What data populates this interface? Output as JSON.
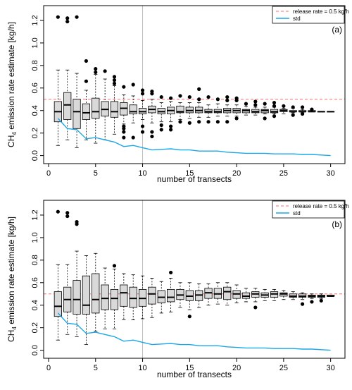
{
  "chart_data": [
    {
      "type": "box",
      "panel_label": "(a)",
      "xlabel": "number of transects",
      "ylabel": "CH4 emission rate estimate [kg/h]",
      "xlim": [
        0,
        31
      ],
      "ylim": [
        -0.04,
        1.3
      ],
      "xticks": [
        0,
        5,
        10,
        15,
        20,
        25,
        30
      ],
      "yticks": [
        0.0,
        0.2,
        0.4,
        0.6,
        0.8,
        1.0,
        1.2
      ],
      "reference_line": {
        "name": "release rate = 0.5 kg/h",
        "value": 0.5,
        "color": "#ff6b6b",
        "style": "dashed"
      },
      "vertical_line": {
        "x": 10,
        "color": "#bbbbbb"
      },
      "legend_position": "top-right",
      "grid": false,
      "boxes": [
        {
          "x": 1,
          "whisker_low": 0.09,
          "q1": 0.3,
          "median": 0.39,
          "q3": 0.48,
          "whisker_high": 0.76,
          "outliers": [
            1.23
          ]
        },
        {
          "x": 2,
          "whisker_low": 0.14,
          "q1": 0.32,
          "median": 0.45,
          "q3": 0.56,
          "whisker_high": 0.76,
          "outliers": [
            1.19,
            1.22
          ]
        },
        {
          "x": 3,
          "whisker_low": 0.07,
          "q1": 0.24,
          "median": 0.39,
          "q3": 0.5,
          "whisker_high": 0.73,
          "outliers": [
            1.23
          ]
        },
        {
          "x": 4,
          "whisker_low": 0.14,
          "q1": 0.32,
          "median": 0.38,
          "q3": 0.46,
          "whisker_high": 0.58,
          "outliers": [
            0.66,
            0.84
          ]
        },
        {
          "x": 5,
          "whisker_low": 0.11,
          "q1": 0.33,
          "median": 0.39,
          "q3": 0.51,
          "whisker_high": 0.72,
          "outliers": [
            0.77,
            0.74
          ]
        },
        {
          "x": 6,
          "whisker_low": 0.14,
          "q1": 0.35,
          "median": 0.41,
          "q3": 0.48,
          "whisker_high": 0.68,
          "outliers": [
            0.75
          ]
        },
        {
          "x": 7,
          "whisker_low": 0.19,
          "q1": 0.34,
          "median": 0.39,
          "q3": 0.48,
          "whisker_high": 0.62,
          "outliers": [
            0.64,
            0.67,
            0.7
          ]
        },
        {
          "x": 8,
          "whisker_low": 0.28,
          "q1": 0.36,
          "median": 0.42,
          "q3": 0.47,
          "whisker_high": 0.54,
          "outliers": [
            0.16,
            0.21,
            0.24,
            0.26,
            0.61
          ]
        },
        {
          "x": 9,
          "whisker_low": 0.29,
          "q1": 0.37,
          "median": 0.39,
          "q3": 0.45,
          "whisker_high": 0.53,
          "outliers": [
            0.16,
            0.63
          ]
        },
        {
          "x": 10,
          "whisker_low": 0.32,
          "q1": 0.37,
          "median": 0.39,
          "q3": 0.42,
          "whisker_high": 0.49,
          "outliers": [
            0.21,
            0.26,
            0.55,
            0.58
          ]
        },
        {
          "x": 11,
          "whisker_low": 0.29,
          "q1": 0.38,
          "median": 0.41,
          "q3": 0.44,
          "whisker_high": 0.5,
          "outliers": [
            0.17,
            0.21,
            0.55,
            0.57
          ]
        },
        {
          "x": 12,
          "whisker_low": 0.3,
          "q1": 0.37,
          "median": 0.39,
          "q3": 0.42,
          "whisker_high": 0.47,
          "outliers": [
            0.23,
            0.27,
            0.52
          ]
        },
        {
          "x": 13,
          "whisker_low": 0.3,
          "q1": 0.37,
          "median": 0.4,
          "q3": 0.43,
          "whisker_high": 0.48,
          "outliers": [
            0.23,
            0.26,
            0.51
          ]
        },
        {
          "x": 14,
          "whisker_low": 0.32,
          "q1": 0.38,
          "median": 0.39,
          "q3": 0.44,
          "whisker_high": 0.47,
          "outliers": [
            0.3,
            0.53
          ]
        },
        {
          "x": 15,
          "whisker_low": 0.33,
          "q1": 0.38,
          "median": 0.4,
          "q3": 0.43,
          "whisker_high": 0.47,
          "outliers": [
            0.29,
            0.52
          ]
        },
        {
          "x": 16,
          "whisker_low": 0.34,
          "q1": 0.38,
          "median": 0.4,
          "q3": 0.43,
          "whisker_high": 0.47,
          "outliers": [
            0.3,
            0.5,
            0.59
          ]
        },
        {
          "x": 17,
          "whisker_low": 0.34,
          "q1": 0.38,
          "median": 0.39,
          "q3": 0.41,
          "whisker_high": 0.45,
          "outliers": [
            0.3,
            0.52
          ]
        },
        {
          "x": 18,
          "whisker_low": 0.35,
          "q1": 0.38,
          "median": 0.39,
          "q3": 0.41,
          "whisker_high": 0.46,
          "outliers": [
            0.3,
            0.5
          ]
        },
        {
          "x": 19,
          "whisker_low": 0.35,
          "q1": 0.38,
          "median": 0.4,
          "q3": 0.42,
          "whisker_high": 0.45,
          "outliers": [
            0.3,
            0.49,
            0.52
          ]
        },
        {
          "x": 20,
          "whisker_low": 0.35,
          "q1": 0.38,
          "median": 0.4,
          "q3": 0.42,
          "whisker_high": 0.45,
          "outliers": [
            0.33,
            0.49,
            0.51
          ]
        },
        {
          "x": 21,
          "whisker_low": 0.36,
          "q1": 0.38,
          "median": 0.4,
          "q3": 0.41,
          "whisker_high": 0.44,
          "outliers": [
            0.46
          ]
        },
        {
          "x": 22,
          "whisker_low": 0.36,
          "q1": 0.38,
          "median": 0.39,
          "q3": 0.41,
          "whisker_high": 0.43,
          "outliers": [
            0.45,
            0.48
          ]
        },
        {
          "x": 23,
          "whisker_low": 0.37,
          "q1": 0.38,
          "median": 0.4,
          "q3": 0.41,
          "whisker_high": 0.43,
          "outliers": [
            0.33,
            0.46
          ]
        },
        {
          "x": 24,
          "whisker_low": 0.37,
          "q1": 0.38,
          "median": 0.39,
          "q3": 0.41,
          "whisker_high": 0.43,
          "outliers": [
            0.35,
            0.44,
            0.47
          ]
        },
        {
          "x": 25,
          "whisker_low": 0.37,
          "q1": 0.39,
          "median": 0.4,
          "q3": 0.41,
          "whisker_high": 0.42,
          "outliers": [
            0.44
          ]
        },
        {
          "x": 26,
          "whisker_low": 0.38,
          "q1": 0.39,
          "median": 0.39,
          "q3": 0.4,
          "whisker_high": 0.42,
          "outliers": [
            0.36,
            0.43
          ]
        },
        {
          "x": 27,
          "whisker_low": 0.38,
          "q1": 0.39,
          "median": 0.39,
          "q3": 0.4,
          "whisker_high": 0.41,
          "outliers": [
            0.37,
            0.43
          ]
        },
        {
          "x": 28,
          "whisker_low": 0.39,
          "q1": 0.39,
          "median": 0.39,
          "q3": 0.4,
          "whisker_high": 0.4,
          "outliers": [
            0.41
          ]
        },
        {
          "x": 29,
          "whisker_low": 0.39,
          "q1": 0.39,
          "median": 0.39,
          "q3": 0.39,
          "whisker_high": 0.39,
          "outliers": []
        },
        {
          "x": 30,
          "whisker_low": 0.39,
          "q1": 0.39,
          "median": 0.39,
          "q3": 0.39,
          "whisker_high": 0.39,
          "outliers": []
        }
      ],
      "std_series": {
        "name": "std",
        "color": "#1aa7e8",
        "x": [
          1,
          2,
          3,
          4,
          5,
          6,
          7,
          8,
          9,
          10,
          11,
          12,
          13,
          14,
          15,
          16,
          17,
          18,
          19,
          20,
          21,
          22,
          23,
          24,
          25,
          26,
          27,
          28,
          29,
          30
        ],
        "y": [
          0.33,
          0.24,
          0.23,
          0.15,
          0.16,
          0.14,
          0.12,
          0.08,
          0.09,
          0.07,
          0.05,
          0.055,
          0.06,
          0.05,
          0.05,
          0.04,
          0.04,
          0.04,
          0.03,
          0.025,
          0.02,
          0.02,
          0.02,
          0.015,
          0.015,
          0.015,
          0.01,
          0.01,
          0.005,
          0.0
        ]
      }
    },
    {
      "type": "box",
      "panel_label": "(b)",
      "xlabel": "number of transects",
      "ylabel": "CH4 emission rate estimate [kg/h]",
      "xlim": [
        0,
        31
      ],
      "ylim": [
        -0.04,
        1.3
      ],
      "xticks": [
        0,
        5,
        10,
        15,
        20,
        25,
        30
      ],
      "yticks": [
        0.0,
        0.2,
        0.4,
        0.6,
        0.8,
        1.0,
        1.2
      ],
      "reference_line": {
        "name": "release rate = 0.5 kg/h",
        "value": 0.5,
        "color": "#ff6b6b",
        "style": "dashed"
      },
      "vertical_line": {
        "x": 10,
        "color": "#bbbbbb"
      },
      "legend_position": "top-right",
      "grid": false,
      "boxes": [
        {
          "x": 1,
          "whisker_low": 0.09,
          "q1": 0.3,
          "median": 0.39,
          "q3": 0.52,
          "whisker_high": 0.76,
          "outliers": [
            1.23
          ]
        },
        {
          "x": 2,
          "whisker_low": 0.14,
          "q1": 0.34,
          "median": 0.45,
          "q3": 0.56,
          "whisker_high": 0.76,
          "outliers": [
            1.19,
            1.22
          ]
        },
        {
          "x": 3,
          "whisker_low": 0.12,
          "q1": 0.32,
          "median": 0.45,
          "q3": 0.62,
          "whisker_high": 0.88,
          "outliers": [
            1.12,
            1.14
          ]
        },
        {
          "x": 4,
          "whisker_low": 0.05,
          "q1": 0.32,
          "median": 0.4,
          "q3": 0.66,
          "whisker_high": 0.84,
          "outliers": []
        },
        {
          "x": 5,
          "whisker_low": 0.17,
          "q1": 0.33,
          "median": 0.45,
          "q3": 0.68,
          "whisker_high": 0.86,
          "outliers": []
        },
        {
          "x": 6,
          "whisker_low": 0.19,
          "q1": 0.36,
          "median": 0.46,
          "q3": 0.58,
          "whisker_high": 0.73,
          "outliers": []
        },
        {
          "x": 7,
          "whisker_low": 0.19,
          "q1": 0.36,
          "median": 0.46,
          "q3": 0.54,
          "whisker_high": 0.72,
          "outliers": [
            0.75
          ]
        },
        {
          "x": 8,
          "whisker_low": 0.27,
          "q1": 0.39,
          "median": 0.51,
          "q3": 0.58,
          "whisker_high": 0.68,
          "outliers": []
        },
        {
          "x": 9,
          "whisker_low": 0.27,
          "q1": 0.38,
          "median": 0.46,
          "q3": 0.56,
          "whisker_high": 0.67,
          "outliers": []
        },
        {
          "x": 10,
          "whisker_low": 0.28,
          "q1": 0.39,
          "median": 0.46,
          "q3": 0.54,
          "whisker_high": 0.66,
          "outliers": []
        },
        {
          "x": 11,
          "whisker_low": 0.29,
          "q1": 0.41,
          "median": 0.5,
          "q3": 0.56,
          "whisker_high": 0.64,
          "outliers": []
        },
        {
          "x": 12,
          "whisker_low": 0.33,
          "q1": 0.42,
          "median": 0.47,
          "q3": 0.53,
          "whisker_high": 0.61,
          "outliers": []
        },
        {
          "x": 13,
          "whisker_low": 0.34,
          "q1": 0.43,
          "median": 0.47,
          "q3": 0.54,
          "whisker_high": 0.64,
          "outliers": [
            0.69
          ]
        },
        {
          "x": 14,
          "whisker_low": 0.38,
          "q1": 0.45,
          "median": 0.49,
          "q3": 0.54,
          "whisker_high": 0.6,
          "outliers": []
        },
        {
          "x": 15,
          "whisker_low": 0.36,
          "q1": 0.44,
          "median": 0.48,
          "q3": 0.53,
          "whisker_high": 0.6,
          "outliers": [
            0.3
          ]
        },
        {
          "x": 16,
          "whisker_low": 0.38,
          "q1": 0.44,
          "median": 0.49,
          "q3": 0.53,
          "whisker_high": 0.59,
          "outliers": []
        },
        {
          "x": 17,
          "whisker_low": 0.4,
          "q1": 0.46,
          "median": 0.51,
          "q3": 0.55,
          "whisker_high": 0.59,
          "outliers": []
        },
        {
          "x": 18,
          "whisker_low": 0.41,
          "q1": 0.46,
          "median": 0.5,
          "q3": 0.55,
          "whisker_high": 0.6,
          "outliers": []
        },
        {
          "x": 19,
          "whisker_low": 0.4,
          "q1": 0.45,
          "median": 0.52,
          "q3": 0.56,
          "whisker_high": 0.6,
          "outliers": []
        },
        {
          "x": 20,
          "whisker_low": 0.42,
          "q1": 0.46,
          "median": 0.5,
          "q3": 0.53,
          "whisker_high": 0.58,
          "outliers": []
        },
        {
          "x": 21,
          "whisker_low": 0.43,
          "q1": 0.46,
          "median": 0.48,
          "q3": 0.51,
          "whisker_high": 0.55,
          "outliers": []
        },
        {
          "x": 22,
          "whisker_low": 0.43,
          "q1": 0.47,
          "median": 0.5,
          "q3": 0.52,
          "whisker_high": 0.55,
          "outliers": [
            0.38
          ]
        },
        {
          "x": 23,
          "whisker_low": 0.44,
          "q1": 0.47,
          "median": 0.49,
          "q3": 0.51,
          "whisker_high": 0.54,
          "outliers": []
        },
        {
          "x": 24,
          "whisker_low": 0.44,
          "q1": 0.47,
          "median": 0.5,
          "q3": 0.52,
          "whisker_high": 0.54,
          "outliers": []
        },
        {
          "x": 25,
          "whisker_low": 0.45,
          "q1": 0.48,
          "median": 0.5,
          "q3": 0.51,
          "whisker_high": 0.53,
          "outliers": []
        },
        {
          "x": 26,
          "whisker_low": 0.45,
          "q1": 0.47,
          "median": 0.48,
          "q3": 0.5,
          "whisker_high": 0.52,
          "outliers": []
        },
        {
          "x": 27,
          "whisker_low": 0.45,
          "q1": 0.47,
          "median": 0.48,
          "q3": 0.5,
          "whisker_high": 0.51,
          "outliers": [
            0.41
          ]
        },
        {
          "x": 28,
          "whisker_low": 0.46,
          "q1": 0.47,
          "median": 0.48,
          "q3": 0.49,
          "whisker_high": 0.5,
          "outliers": [
            0.43
          ]
        },
        {
          "x": 29,
          "whisker_low": 0.46,
          "q1": 0.47,
          "median": 0.48,
          "q3": 0.49,
          "whisker_high": 0.5,
          "outliers": [
            0.44
          ]
        },
        {
          "x": 30,
          "whisker_low": 0.48,
          "q1": 0.48,
          "median": 0.48,
          "q3": 0.49,
          "whisker_high": 0.49,
          "outliers": []
        }
      ],
      "std_series": {
        "name": "std",
        "color": "#1aa7e8",
        "x": [
          1,
          2,
          3,
          4,
          5,
          6,
          7,
          8,
          9,
          10,
          11,
          12,
          13,
          14,
          15,
          16,
          17,
          18,
          19,
          20,
          21,
          22,
          23,
          24,
          25,
          26,
          27,
          28,
          29,
          30
        ],
        "y": [
          0.33,
          0.24,
          0.23,
          0.15,
          0.16,
          0.14,
          0.12,
          0.08,
          0.09,
          0.07,
          0.05,
          0.055,
          0.06,
          0.05,
          0.05,
          0.04,
          0.04,
          0.04,
          0.03,
          0.025,
          0.02,
          0.02,
          0.02,
          0.015,
          0.015,
          0.015,
          0.01,
          0.01,
          0.005,
          0.0
        ]
      }
    }
  ]
}
